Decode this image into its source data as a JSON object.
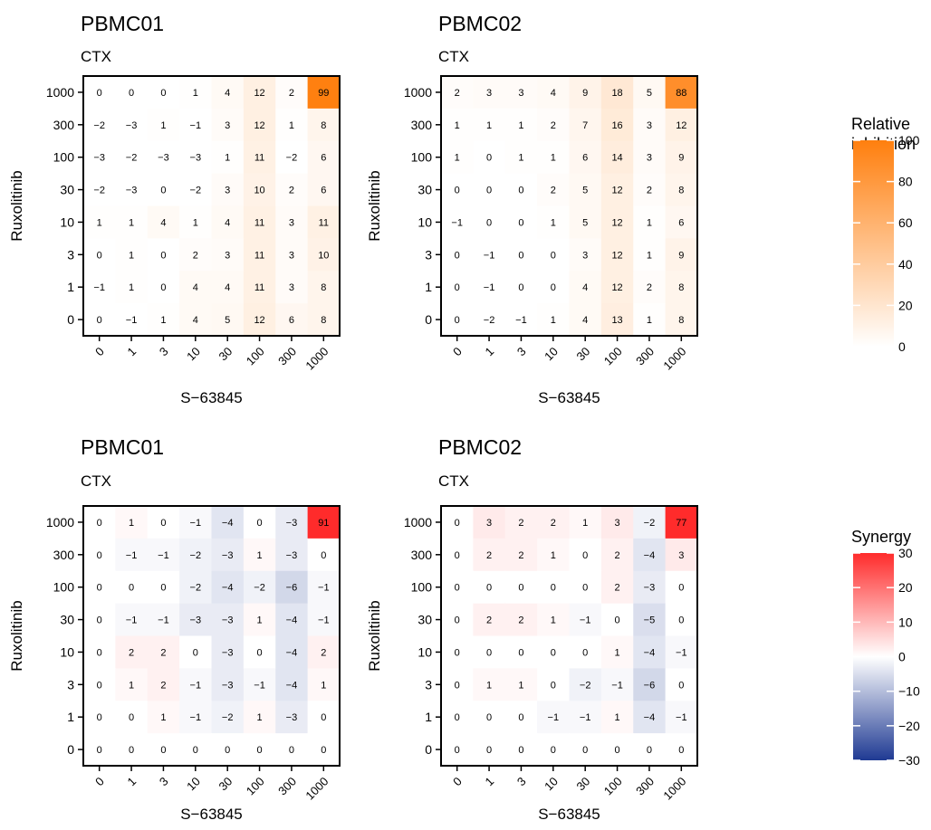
{
  "chart_data": [
    {
      "type": "heatmap",
      "title": "PBMC01",
      "subtitle": "CTX",
      "xlabel": "S−63845",
      "ylabel": "Ruxolitinib",
      "x_categories": [
        "0",
        "1",
        "3",
        "10",
        "30",
        "100",
        "300",
        "1000"
      ],
      "y_categories": [
        "1000",
        "300",
        "100",
        "30",
        "10",
        "3",
        "1",
        "0"
      ],
      "values": [
        [
          0,
          0,
          0,
          1,
          4,
          12,
          2,
          99
        ],
        [
          -2,
          -3,
          1,
          -1,
          3,
          12,
          1,
          8
        ],
        [
          -3,
          -2,
          -3,
          -3,
          1,
          11,
          -2,
          6
        ],
        [
          -2,
          -3,
          0,
          -2,
          3,
          10,
          2,
          6
        ],
        [
          1,
          1,
          4,
          1,
          4,
          11,
          3,
          11
        ],
        [
          0,
          1,
          0,
          2,
          3,
          11,
          3,
          10
        ],
        [
          -1,
          1,
          0,
          4,
          4,
          11,
          3,
          8
        ],
        [
          0,
          -1,
          1,
          4,
          5,
          12,
          6,
          8
        ]
      ],
      "color_scale": "inhibition"
    },
    {
      "type": "heatmap",
      "title": "PBMC02",
      "subtitle": "CTX",
      "xlabel": "S−63845",
      "ylabel": "Ruxolitinib",
      "x_categories": [
        "0",
        "1",
        "3",
        "10",
        "30",
        "100",
        "300",
        "1000"
      ],
      "y_categories": [
        "1000",
        "300",
        "100",
        "30",
        "10",
        "3",
        "1",
        "0"
      ],
      "values": [
        [
          2,
          3,
          3,
          4,
          9,
          18,
          5,
          88
        ],
        [
          1,
          1,
          1,
          2,
          7,
          16,
          3,
          12
        ],
        [
          1,
          0,
          1,
          1,
          6,
          14,
          3,
          9
        ],
        [
          0,
          0,
          0,
          2,
          5,
          12,
          2,
          8
        ],
        [
          -1,
          0,
          0,
          1,
          5,
          12,
          1,
          6
        ],
        [
          0,
          -1,
          0,
          0,
          3,
          12,
          1,
          9
        ],
        [
          0,
          -1,
          0,
          0,
          4,
          12,
          2,
          8
        ],
        [
          0,
          -2,
          -1,
          1,
          4,
          13,
          1,
          8
        ]
      ],
      "color_scale": "inhibition"
    },
    {
      "type": "heatmap",
      "title": "PBMC01",
      "subtitle": "CTX",
      "xlabel": "S−63845",
      "ylabel": "Ruxolitinib",
      "x_categories": [
        "0",
        "1",
        "3",
        "10",
        "30",
        "100",
        "300",
        "1000"
      ],
      "y_categories": [
        "1000",
        "300",
        "100",
        "30",
        "10",
        "3",
        "1",
        "0"
      ],
      "values": [
        [
          0,
          1,
          0,
          -1,
          -4,
          0,
          -3,
          91
        ],
        [
          0,
          -1,
          -1,
          -2,
          -3,
          1,
          -3,
          0
        ],
        [
          0,
          0,
          0,
          -2,
          -4,
          -2,
          -6,
          -1
        ],
        [
          0,
          -1,
          -1,
          -3,
          -3,
          1,
          -4,
          -1
        ],
        [
          0,
          2,
          2,
          0,
          -3,
          0,
          -4,
          2
        ],
        [
          0,
          1,
          2,
          -1,
          -3,
          -1,
          -4,
          1
        ],
        [
          0,
          0,
          1,
          -1,
          -2,
          1,
          -3,
          0
        ],
        [
          0,
          0,
          0,
          0,
          0,
          0,
          0,
          0
        ]
      ],
      "color_scale": "synergy"
    },
    {
      "type": "heatmap",
      "title": "PBMC02",
      "subtitle": "CTX",
      "xlabel": "S−63845",
      "ylabel": "Ruxolitinib",
      "x_categories": [
        "0",
        "1",
        "3",
        "10",
        "30",
        "100",
        "300",
        "1000"
      ],
      "y_categories": [
        "1000",
        "300",
        "100",
        "30",
        "10",
        "3",
        "1",
        "0"
      ],
      "values": [
        [
          0,
          3,
          2,
          2,
          1,
          3,
          -2,
          77
        ],
        [
          0,
          2,
          2,
          1,
          0,
          2,
          -4,
          3
        ],
        [
          0,
          0,
          0,
          0,
          0,
          2,
          -3,
          0
        ],
        [
          0,
          2,
          2,
          1,
          -1,
          0,
          -5,
          0
        ],
        [
          0,
          0,
          0,
          0,
          0,
          1,
          -4,
          -1
        ],
        [
          0,
          1,
          1,
          0,
          -2,
          -1,
          -6,
          0
        ],
        [
          0,
          0,
          0,
          -1,
          -1,
          1,
          -4,
          -1
        ],
        [
          0,
          0,
          0,
          0,
          0,
          0,
          0,
          0
        ]
      ],
      "color_scale": "synergy"
    }
  ],
  "legends": {
    "inhibition": {
      "title": [
        "Relative",
        "inhibition"
      ],
      "ticks": [
        0,
        20,
        40,
        60,
        80,
        100
      ],
      "range": [
        0,
        100
      ],
      "colors": {
        "low": "#ffffff",
        "high": "#ff7f0e"
      }
    },
    "synergy": {
      "title": [
        "Synergy"
      ],
      "ticks": [
        -30,
        -20,
        -10,
        0,
        10,
        20,
        30
      ],
      "range": [
        -30,
        30
      ],
      "colors": {
        "low": "#1f3a93",
        "mid": "#ffffff",
        "high": "#ff2b2b"
      }
    }
  }
}
